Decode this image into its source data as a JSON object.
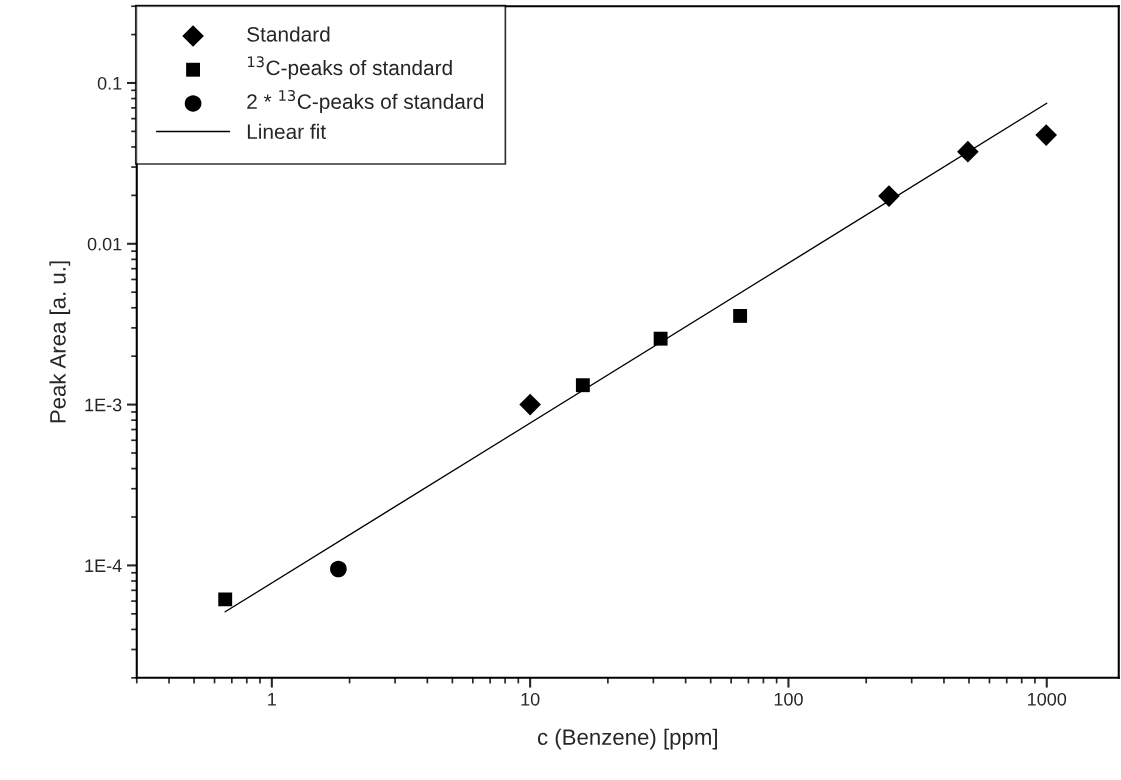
{
  "chart_data": {
    "type": "scatter",
    "xlabel": "c (Benzene) [ppm]",
    "ylabel": "Peak Area [a. u.]",
    "log": "xy",
    "grid": false,
    "legend": "top left",
    "xlim": [
      0.3,
      1900
    ],
    "xticks": [
      1,
      10,
      100,
      1000
    ],
    "ylim": [
      2e-05,
      0.3
    ],
    "yticks": [
      {
        "value": 0.0001,
        "label": "1E-4"
      },
      {
        "value": 0.001,
        "label": "1E-3"
      },
      0.01,
      0.1
    ],
    "series": [
      {
        "name": "Standard",
        "marker": "diamond",
        "color": "#000000",
        "x": [
          10,
          245,
          495,
          995
        ],
        "values": [
          0.001,
          0.0198,
          0.0374,
          0.0474
        ]
      },
      {
        "name": "$^{13}$C-peaks of standard",
        "marker": "square",
        "color": "#000000",
        "x": [
          0.66,
          16,
          32,
          65
        ],
        "values": [
          6.15e-05,
          0.00132,
          0.00257,
          0.00356
        ]
      },
      {
        "name": "2 * $^{13}$C-peaks of standard",
        "marker": "circle",
        "color": "#000000",
        "x": [
          1.81
        ],
        "values": [
          9.5e-05
        ]
      },
      {
        "name": "Linear fit",
        "type": "line",
        "marker": "none",
        "line_style": "solid",
        "color": "#000000",
        "x": [
          0.66,
          1000
        ],
        "values": [
          5.15e-05,
          0.0748
        ]
      }
    ]
  }
}
